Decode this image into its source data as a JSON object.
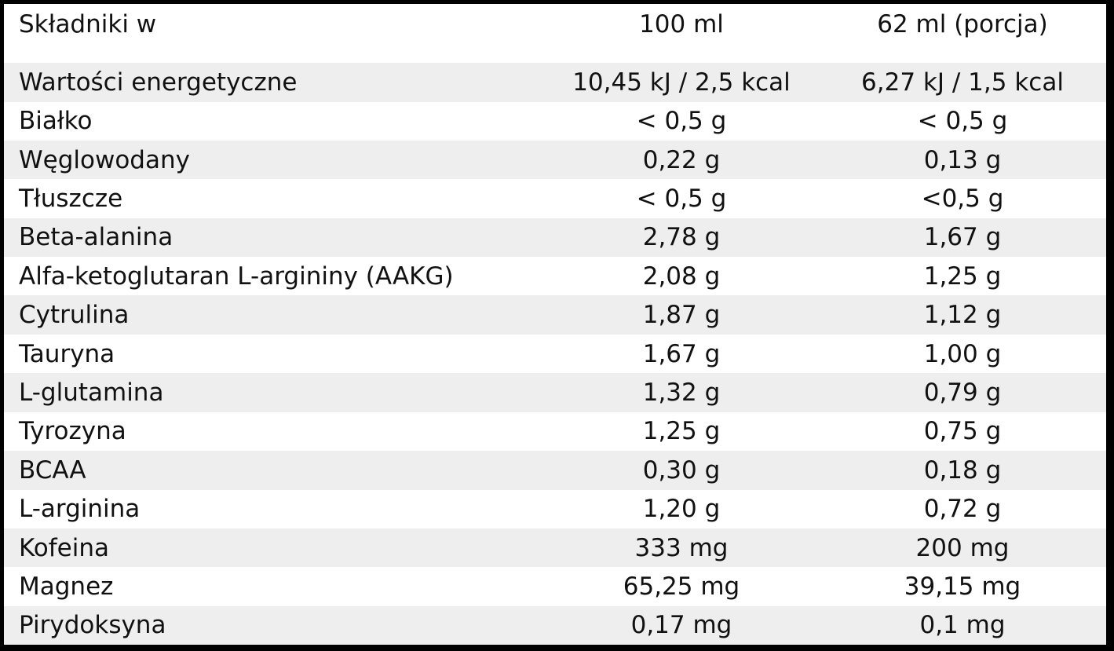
{
  "table": {
    "header": [
      "Składniki w",
      "100 ml",
      "62 ml (porcja)"
    ],
    "rows": [
      [
        "Wartości energetyczne",
        "10,45 kJ / 2,5 kcal",
        "6,27 kJ / 1,5 kcal"
      ],
      [
        "Białko",
        "< 0,5 g",
        "< 0,5 g"
      ],
      [
        "Węglowodany",
        "0,22 g",
        "0,13 g"
      ],
      [
        "Tłuszcze",
        "< 0,5 g",
        "<0,5 g"
      ],
      [
        "Beta-alanina",
        "2,78 g",
        "1,67 g"
      ],
      [
        "Alfa-ketoglutaran L-argininy (AAKG)",
        "2,08 g",
        "1,25 g"
      ],
      [
        "Cytrulina",
        "1,87 g",
        "1,12 g"
      ],
      [
        "Tauryna",
        "1,67 g",
        "1,00 g"
      ],
      [
        "L-glutamina",
        "1,32 g",
        "0,79 g"
      ],
      [
        "Tyrozyna",
        "1,25 g",
        "0,75 g"
      ],
      [
        "BCAA",
        "0,30 g",
        "0,18 g"
      ],
      [
        "L-arginina",
        "1,20 g",
        "0,72 g"
      ],
      [
        "Kofeina",
        "333 mg",
        "200 mg"
      ],
      [
        "Magnez",
        "65,25 mg",
        "39,15 mg"
      ],
      [
        "Pirydoksyna",
        "0,17 mg",
        "0,1 mg"
      ]
    ]
  }
}
